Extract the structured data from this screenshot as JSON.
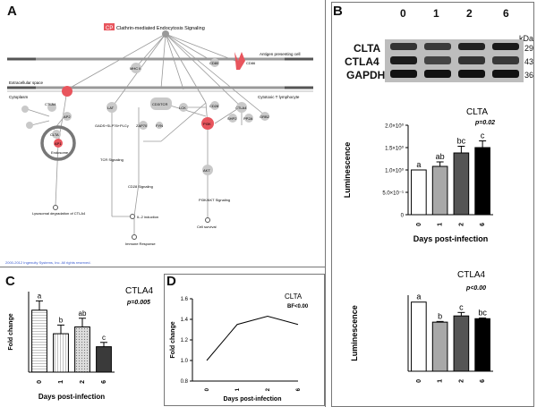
{
  "panelA": {
    "letter": "A",
    "legend_tag": "CP",
    "legend_text": "Clathrin-mediated Endocytosis Signaling",
    "labels": {
      "antigen_cell": "Antigen presenting cell",
      "extracellular": "Extracellular space",
      "cytoplasm": "Cytoplasm",
      "cytotoxic": "Cytotoxic T lymphocyte",
      "endosome": "Endosome",
      "lyso": "Lysosomal degradation of CTLA4",
      "tcr": "TCR Signaling",
      "cd28": "CD28 Signaling",
      "il2": "IL-2 induction",
      "immune": "Immune Response",
      "pi3k": "PI3K/AKT Signaling",
      "survival": "Cell survival",
      "copyright": "2000-2012 Ingenuity Systems, Inc. All rights reserved."
    },
    "nodes": {
      "ctla4a": "CTLA4",
      "ap2": "AP2",
      "clta": "CLTA",
      "ap1": "AP1",
      "lat": "LAT",
      "gads": "GADS+SLP76+PLCγ",
      "zap70": "ZAP70",
      "cd3tcr": "CD3/TCR",
      "lck": "LCK",
      "fyn": "FYN",
      "pi3k": "PI3K",
      "shp2": "SHP2",
      "pp2a": "PP2A",
      "grb2": "GRB2",
      "akt": "AKT",
      "ctla4b": "CTLA4",
      "cd28": "CD28",
      "mhc": "MHC II",
      "cd80": "CD80",
      "cd86": "CD86"
    },
    "colors": {
      "highlight": "#e8555d",
      "node": "#c9c9c9",
      "edge": "#9a9a9a"
    }
  },
  "panelB": {
    "letter": "B",
    "lanes": [
      "0",
      "1",
      "2",
      "6"
    ],
    "kda_header": "kDa",
    "proteins": [
      {
        "name": "CLTA",
        "kda": "29"
      },
      {
        "name": "CTLA4",
        "kda": "43"
      },
      {
        "name": "GAPDH",
        "kda": "36"
      }
    ]
  },
  "chart_data": [
    {
      "id": "B-CLTA",
      "type": "bar",
      "title": "CLTA",
      "stat": "p=0.02",
      "categories": [
        "0",
        "1",
        "2",
        "6"
      ],
      "values": [
        1000000,
        1080000,
        1380000,
        1500000
      ],
      "errors": [
        0,
        100000,
        150000,
        150000
      ],
      "letters": [
        "a",
        "ab",
        "bc",
        "c"
      ],
      "bar_colors": [
        "#ffffff",
        "#a8a8a8",
        "#555555",
        "#000000"
      ],
      "xlabel": "Days post-infection",
      "ylabel": "Luminescence",
      "ylim": [
        0,
        2000000
      ],
      "yticks": [
        "0",
        "5.0×10⁻¹",
        "1.0×10⁰",
        "1.5×10⁰",
        "2.0×10⁰"
      ]
    },
    {
      "id": "B-CTLA4",
      "type": "bar",
      "title": "CTLA4",
      "stat": "p<0.00",
      "categories": [
        "0",
        "1",
        "2",
        "6"
      ],
      "values": [
        1.0,
        0.71,
        0.8,
        0.76
      ],
      "errors": [
        0,
        0.01,
        0.05,
        0.01
      ],
      "letters": [
        "a",
        "b",
        "c",
        "bc"
      ],
      "bar_colors": [
        "#ffffff",
        "#a8a8a8",
        "#555555",
        "#000000"
      ],
      "xlabel": "",
      "ylabel": "Luminescence",
      "ylim": [
        0,
        1.1
      ]
    },
    {
      "id": "C",
      "type": "bar",
      "letter": "C",
      "title": "CTLA4",
      "stat": "p=0.005",
      "categories": [
        "0",
        "1",
        "2",
        "6"
      ],
      "values": [
        1.0,
        0.62,
        0.73,
        0.41
      ],
      "errors": [
        0.15,
        0.14,
        0.14,
        0.07
      ],
      "letters": [
        "a",
        "b",
        "ab",
        "c"
      ],
      "xlabel": "Days post-infection",
      "ylabel": "Fold change",
      "ylim": [
        0,
        1.3
      ]
    },
    {
      "id": "D",
      "type": "line",
      "letter": "D",
      "title": "CLTA",
      "stat": "BF<0.00",
      "x": [
        "0",
        "1",
        "2",
        "6"
      ],
      "values": [
        1.0,
        1.35,
        1.43,
        1.35
      ],
      "xlabel": "Days post-infection",
      "ylabel": "Fold change",
      "ylim": [
        0.8,
        1.6
      ],
      "yticks": [
        0.8,
        1.0,
        1.2,
        1.4,
        1.6
      ]
    }
  ]
}
